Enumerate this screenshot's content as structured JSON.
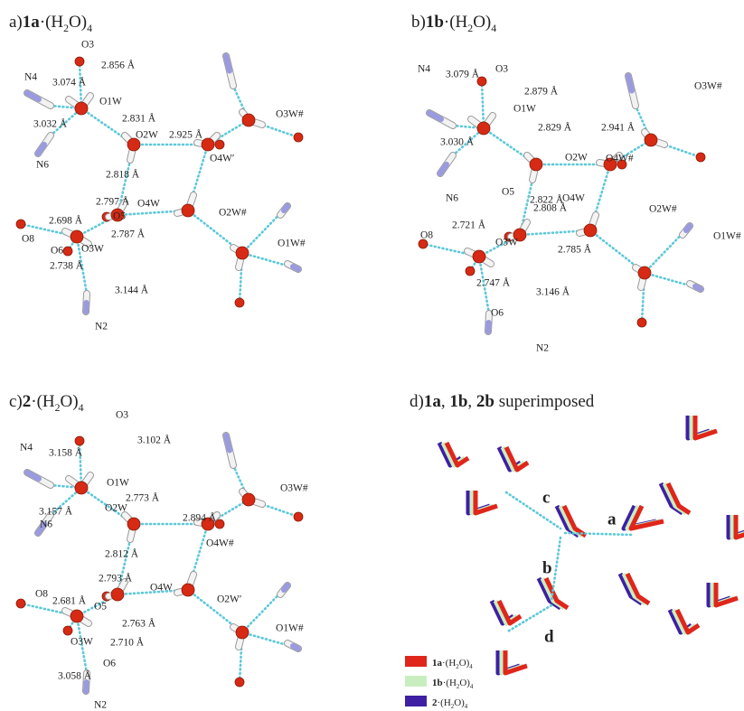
{
  "panels": [
    {
      "title": [
        "a)",
        "1a",
        "·(H",
        "2",
        "O)",
        "4"
      ],
      "labels": [
        "O3",
        "2.856 Å",
        "N4",
        "3.074 Å",
        "O1W",
        "3.032 Å",
        "2.831 Å",
        "N6",
        "O2W",
        "2.925 Å",
        "O3W#",
        "O4W′",
        "2.818 Å",
        "2.797 Å",
        "O4W",
        "O5",
        "O2W#",
        "2.698 Å",
        "2.787 Å",
        "O8",
        "O3W",
        "O6",
        "2.738 Å",
        "O1W#",
        "3.144 Å",
        "N2"
      ]
    },
    {
      "title": [
        "b)",
        "1b",
        "·(H",
        "2",
        "O)",
        "4"
      ],
      "labels": [
        "O3",
        "N4",
        "3.079 Å",
        "2.879 Å",
        "O1W",
        "3.030 Å",
        "2.829 Å",
        "2.941 Å",
        "O3W#",
        "O2W",
        "O4W#",
        "2.822 Å",
        "O5",
        "O4W",
        "2.808 Å",
        "O2W#",
        "2.721 Å",
        "O8",
        "O3W",
        "2.785 Å",
        "O1W#",
        "2.747 Å",
        "3.146 Å",
        "O6",
        "N2",
        "N6"
      ]
    },
    {
      "title": [
        "c)",
        "2",
        "·(H",
        "2",
        "O)",
        "4"
      ],
      "labels": [
        "O3",
        "N4",
        "3.158 Å",
        "3.102 Å",
        "O1W",
        "2.773 Å",
        "3.157 Å",
        "O2W",
        "2.894 Å",
        "O3W#",
        "N6",
        "O4W#",
        "2.812 Å",
        "2.793 Å",
        "O4W",
        "O2W′",
        "O8",
        "2.681 Å",
        "O5",
        "2.763 Å",
        "O1W#",
        "O3W",
        "2.710 Å",
        "O6",
        "3.058 Å",
        "N2"
      ]
    },
    {
      "title": [
        "d)",
        "1a",
        ", ",
        "1b",
        ", ",
        "2b",
        " superimposed"
      ],
      "labels": [
        "c",
        "a",
        "b",
        "d"
      ],
      "legend": [
        {
          "text": [
            "1a",
            "·(H",
            "2",
            "O)",
            "4"
          ],
          "color": "#e0261b"
        },
        {
          "text": [
            "1b",
            "·(H",
            "2",
            "O)",
            "4"
          ],
          "color": "#c8eec0"
        },
        {
          "text": [
            "2",
            "·(H",
            "2",
            "O)",
            "4"
          ],
          "color": "#3f1fa3"
        }
      ]
    }
  ]
}
